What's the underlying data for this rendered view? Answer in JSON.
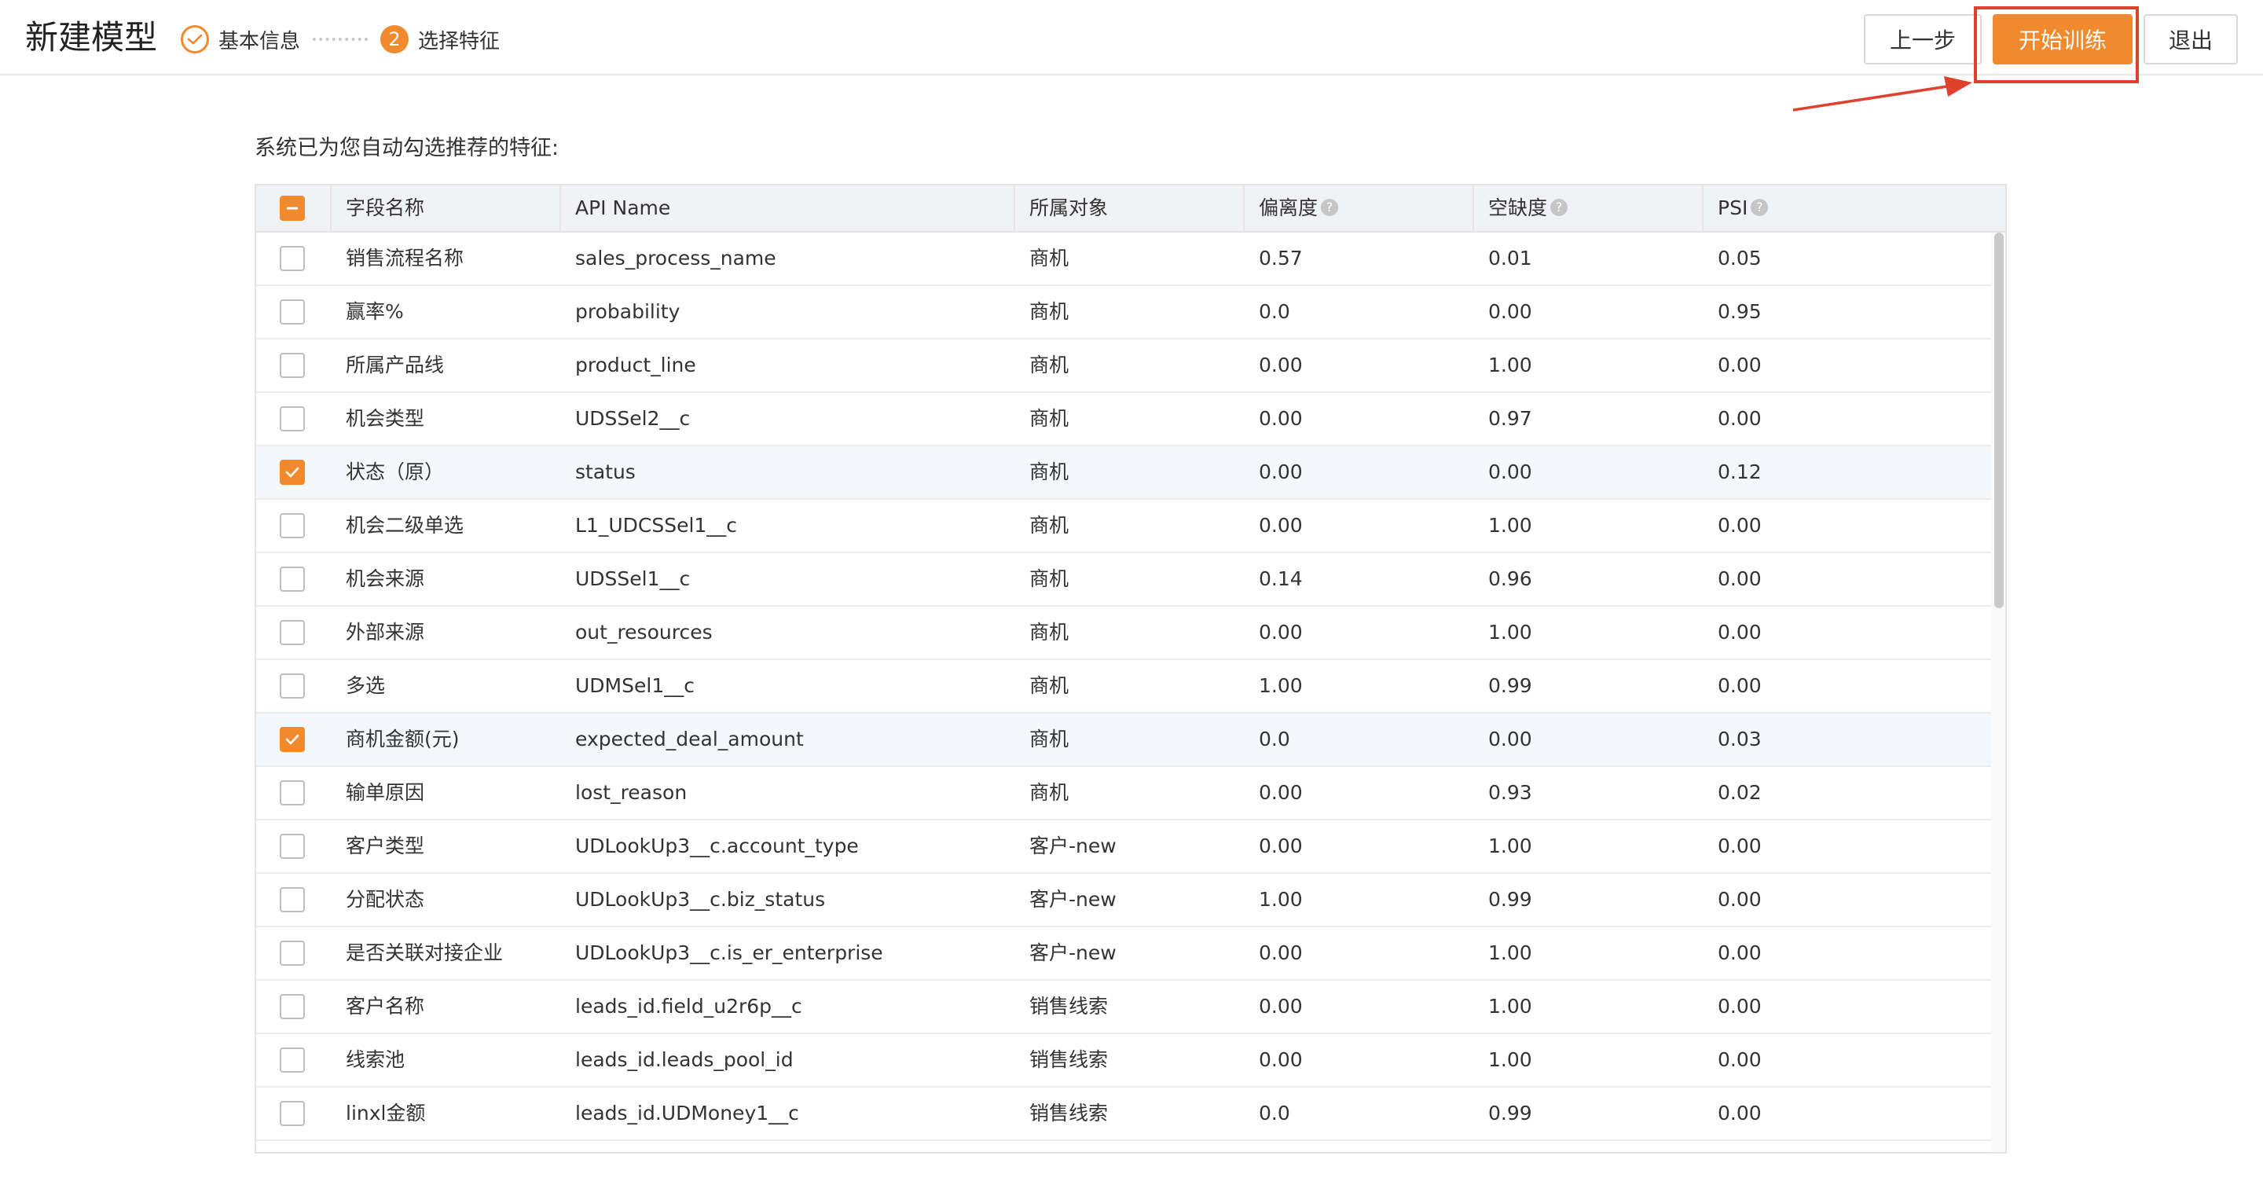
{
  "header": {
    "title": "新建模型",
    "steps": [
      {
        "label": "基本信息",
        "status": "done"
      },
      {
        "number": "2",
        "label": "选择特征",
        "status": "current"
      }
    ],
    "buttons": {
      "prev": "上一步",
      "start": "开始训练",
      "exit": "退出"
    }
  },
  "intro": "系统已为您自动勾选推荐的特征:",
  "table": {
    "header_checkbox_state": "indeterminate",
    "columns": {
      "name": "字段名称",
      "api": "API Name",
      "object": "所属对象",
      "deviation": "偏离度",
      "missing": "空缺度",
      "psi": "PSI"
    },
    "help_glyph": "?",
    "rows": [
      {
        "checked": false,
        "name": "销售流程名称",
        "api": "sales_process_name",
        "object": "商机",
        "deviation": "0.57",
        "missing": "0.01",
        "psi": "0.05"
      },
      {
        "checked": false,
        "name": "赢率%",
        "api": "probability",
        "object": "商机",
        "deviation": "0.0",
        "missing": "0.00",
        "psi": "0.95"
      },
      {
        "checked": false,
        "name": "所属产品线",
        "api": "product_line",
        "object": "商机",
        "deviation": "0.00",
        "missing": "1.00",
        "psi": "0.00"
      },
      {
        "checked": false,
        "name": "机会类型",
        "api": "UDSSel2__c",
        "object": "商机",
        "deviation": "0.00",
        "missing": "0.97",
        "psi": "0.00"
      },
      {
        "checked": true,
        "name": "状态（原）",
        "api": "status",
        "object": "商机",
        "deviation": "0.00",
        "missing": "0.00",
        "psi": "0.12"
      },
      {
        "checked": false,
        "name": "机会二级单选",
        "api": "L1_UDCSSel1__c",
        "object": "商机",
        "deviation": "0.00",
        "missing": "1.00",
        "psi": "0.00"
      },
      {
        "checked": false,
        "name": "机会来源",
        "api": "UDSSel1__c",
        "object": "商机",
        "deviation": "0.14",
        "missing": "0.96",
        "psi": "0.00"
      },
      {
        "checked": false,
        "name": "外部来源",
        "api": "out_resources",
        "object": "商机",
        "deviation": "0.00",
        "missing": "1.00",
        "psi": "0.00"
      },
      {
        "checked": false,
        "name": "多选",
        "api": "UDMSel1__c",
        "object": "商机",
        "deviation": "1.00",
        "missing": "0.99",
        "psi": "0.00"
      },
      {
        "checked": true,
        "name": "商机金额(元)",
        "api": "expected_deal_amount",
        "object": "商机",
        "deviation": "0.0",
        "missing": "0.00",
        "psi": "0.03"
      },
      {
        "checked": false,
        "name": "输单原因",
        "api": "lost_reason",
        "object": "商机",
        "deviation": "0.00",
        "missing": "0.93",
        "psi": "0.02"
      },
      {
        "checked": false,
        "name": "客户类型",
        "api": "UDLookUp3__c.account_type",
        "object": "客户-new",
        "deviation": "0.00",
        "missing": "1.00",
        "psi": "0.00"
      },
      {
        "checked": false,
        "name": "分配状态",
        "api": "UDLookUp3__c.biz_status",
        "object": "客户-new",
        "deviation": "1.00",
        "missing": "0.99",
        "psi": "0.00"
      },
      {
        "checked": false,
        "name": "是否关联对接企业",
        "api": "UDLookUp3__c.is_er_enterprise",
        "object": "客户-new",
        "deviation": "0.00",
        "missing": "1.00",
        "psi": "0.00"
      },
      {
        "checked": false,
        "name": "客户名称",
        "api": "leads_id.field_u2r6p__c",
        "object": "销售线索",
        "deviation": "0.00",
        "missing": "1.00",
        "psi": "0.00"
      },
      {
        "checked": false,
        "name": "线索池",
        "api": "leads_id.leads_pool_id",
        "object": "销售线索",
        "deviation": "0.00",
        "missing": "1.00",
        "psi": "0.00"
      },
      {
        "checked": false,
        "name": "linxl金额",
        "api": "leads_id.UDMoney1__c",
        "object": "销售线索",
        "deviation": "0.0",
        "missing": "0.99",
        "psi": "0.00"
      }
    ]
  },
  "colors": {
    "accent": "#f08a2c",
    "annotation": "#e0402c"
  },
  "annotation": {
    "type": "arrow-and-box",
    "target": "开始训练"
  }
}
